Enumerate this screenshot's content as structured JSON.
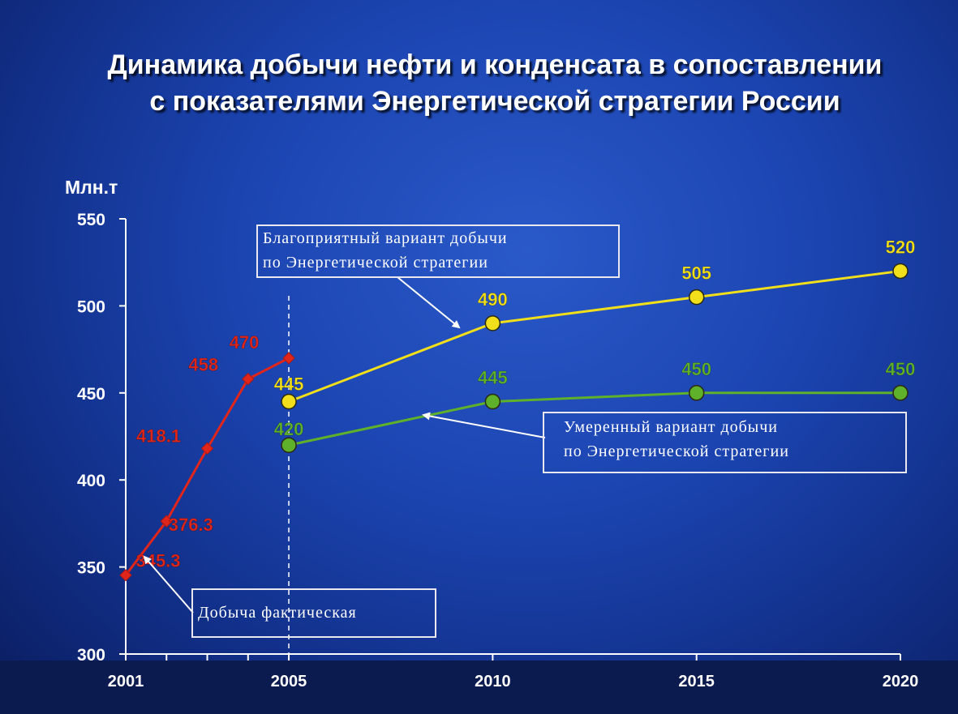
{
  "slide": {
    "title": "Динамика добычи нефти и конденсата в сопоставлении с показателями Энергетической стратегии России"
  },
  "callouts": {
    "favorable": [
      "Благоприятный вариант добычи",
      "по Энергетической стратегии"
    ],
    "moderate": [
      "Умеренный вариант добычи",
      "по Энергетической стратегии"
    ],
    "actual": "Добыча фактическая"
  },
  "chart_data": {
    "type": "line",
    "ylabel": "Млн.т",
    "ylim": [
      300,
      550
    ],
    "yticks": [
      300,
      350,
      400,
      450,
      500,
      550
    ],
    "xticks": [
      2001,
      2005,
      2010,
      2015,
      2020
    ],
    "xlim": [
      2001,
      2020
    ],
    "grid": false,
    "series": [
      {
        "name": "Добыча фактическая",
        "color": "#e0251b",
        "marker": "diamond",
        "x": [
          2001,
          2002,
          2003,
          2004,
          2005
        ],
        "y": [
          345.3,
          376.3,
          418.1,
          458,
          470
        ],
        "labels": [
          "345.3",
          "376.3",
          "418.1",
          "458",
          "470"
        ]
      },
      {
        "name": "Благоприятный вариант добычи по Энергетической стратегии",
        "color": "#f2df1b",
        "marker": "circle",
        "x": [
          2005,
          2010,
          2015,
          2020
        ],
        "y": [
          445,
          490,
          505,
          520
        ],
        "labels": [
          "445",
          "490",
          "505",
          "520"
        ]
      },
      {
        "name": "Умеренный вариант добычи по Энергетической стратегии",
        "color": "#5fb02a",
        "marker": "circle",
        "x": [
          2005,
          2010,
          2015,
          2020
        ],
        "y": [
          420,
          445,
          450,
          450
        ],
        "labels": [
          "420",
          "445",
          "450",
          "450"
        ]
      }
    ]
  }
}
